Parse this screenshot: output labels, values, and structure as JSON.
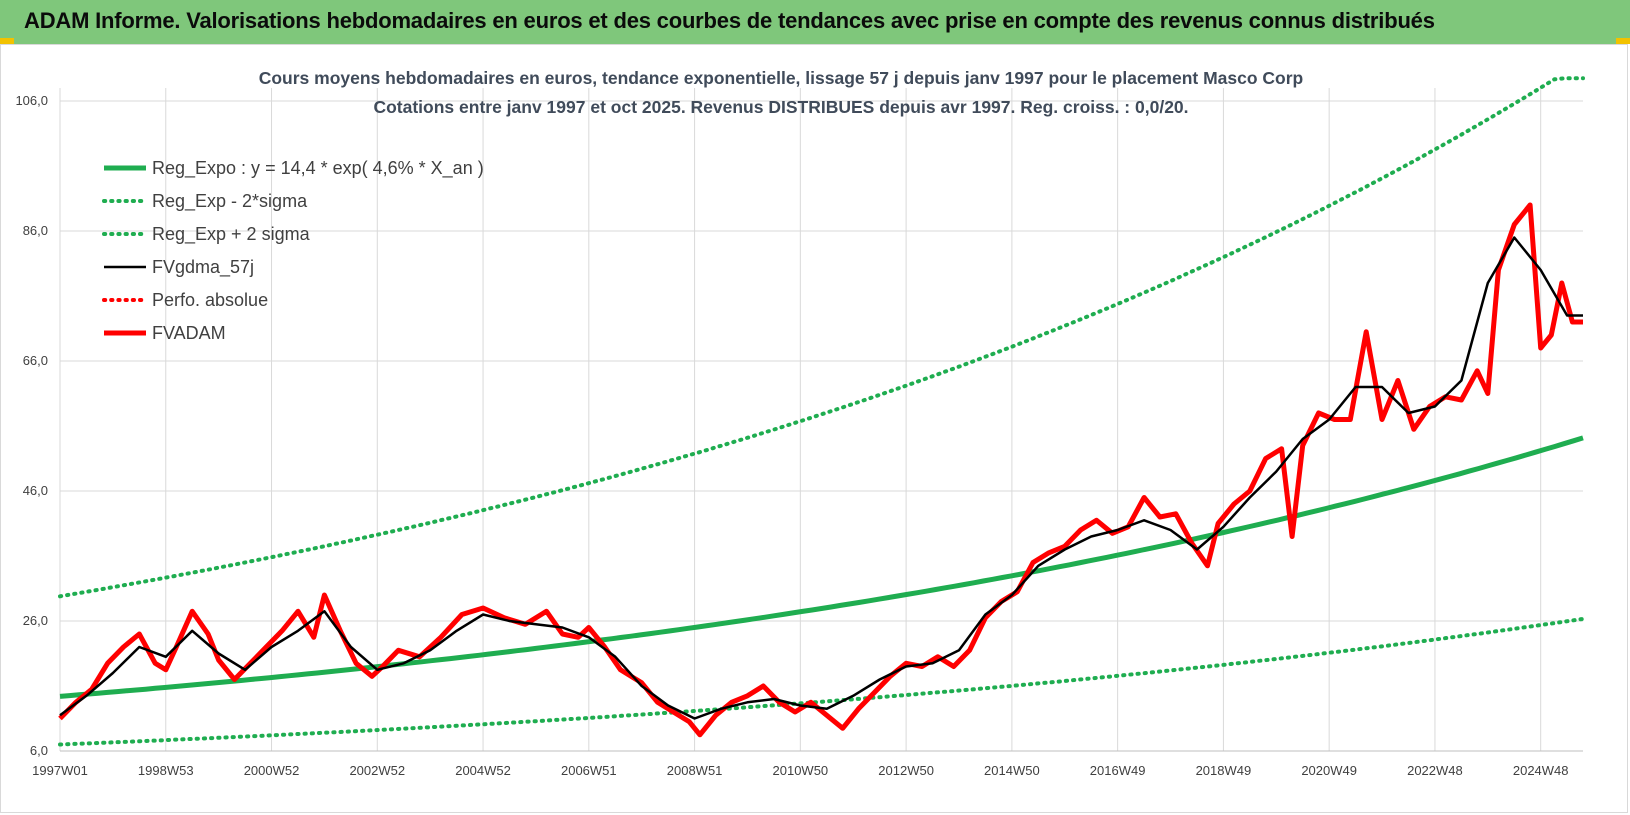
{
  "banner": {
    "title": "ADAM Informe. Valorisations hebdomadaires en euros et des courbes de tendances avec prise en compte des revenus connus distribués"
  },
  "colors": {
    "banner_bg": "#7fc77b",
    "reg_green": "#1fad50",
    "dotted_green": "#1fad50",
    "smooth_black": "#000000",
    "price_red": "#ff0000",
    "grid": "#d9d9d9"
  },
  "chart_data": {
    "type": "line",
    "title": "Cours moyens hebdomadaires en euros, tendance exponentielle, lissage 57 j depuis janv 1997 pour le placement Masco Corp",
    "subtitle": "Cotations entre janv 1997 et oct 2025. Revenus DISTRIBUES depuis avr 1997. Reg. croiss. : 0,0/20.",
    "x_tick_labels": [
      "1997W01",
      "1998W53",
      "2000W52",
      "2002W52",
      "2004W52",
      "2006W51",
      "2008W51",
      "2010W50",
      "2012W50",
      "2014W50",
      "2016W49",
      "2018W49",
      "2020W49",
      "2022W48",
      "2024W48"
    ],
    "x_tick_years": [
      1997.0,
      1999.0,
      2001.0,
      2003.0,
      2005.0,
      2007.0,
      2009.0,
      2011.0,
      2013.0,
      2015.0,
      2017.0,
      2019.0,
      2021.0,
      2023.0,
      2025.0
    ],
    "xlim": [
      1997.0,
      2025.8
    ],
    "ylim": [
      6,
      108
    ],
    "y_ticks": [
      6,
      26,
      46,
      66,
      86,
      106
    ],
    "y_tick_labels": [
      "6,0",
      "26,0",
      "46,0",
      "66,0",
      "86,0",
      "106,0"
    ],
    "grid": true,
    "legend_position": "top-left",
    "series": [
      {
        "name": "Reg_Expo : y = 14,4 * exp( 4,6% *  X_an )",
        "style": "solid-thick",
        "color": "#1fad50",
        "x": [
          1997.0,
          2025.8
        ],
        "a": 14.4,
        "rate": 0.046,
        "cap": null
      },
      {
        "name": "Reg_Exp - 2*sigma",
        "style": "dotted",
        "color": "#1fad50",
        "x": [
          1997.0,
          2025.8
        ],
        "a": 7.0,
        "rate": 0.046,
        "cap": null
      },
      {
        "name": "Reg_Exp + 2 sigma",
        "style": "dotted",
        "color": "#1fad50",
        "x": [
          1997.0,
          2025.8
        ],
        "a": 29.8,
        "rate": 0.046,
        "cap": 109.5
      },
      {
        "name": "FVgdma_57j",
        "style": "solid",
        "color": "#000000",
        "x": [
          1997.0,
          1997.5,
          1998.0,
          1998.5,
          1999.0,
          1999.5,
          2000.0,
          2000.5,
          2001.0,
          2001.5,
          2002.0,
          2002.5,
          2003.0,
          2003.5,
          2004.0,
          2004.5,
          2005.0,
          2005.5,
          2006.0,
          2006.5,
          2007.0,
          2007.5,
          2008.0,
          2008.5,
          2009.0,
          2009.5,
          2010.0,
          2010.5,
          2011.0,
          2011.5,
          2012.0,
          2012.5,
          2013.0,
          2013.5,
          2014.0,
          2014.5,
          2015.0,
          2015.5,
          2016.0,
          2016.5,
          2017.0,
          2017.5,
          2018.0,
          2018.5,
          2019.0,
          2019.5,
          2020.0,
          2020.5,
          2021.0,
          2021.5,
          2022.0,
          2022.5,
          2023.0,
          2023.5,
          2024.0,
          2024.5,
          2025.0,
          2025.5,
          2025.8
        ],
        "y": [
          11.5,
          14.5,
          18.0,
          22.0,
          20.5,
          24.5,
          21.0,
          18.5,
          22.0,
          24.5,
          27.5,
          22.0,
          18.5,
          19.5,
          21.5,
          24.5,
          27.0,
          26.0,
          25.5,
          25.0,
          23.5,
          20.5,
          16.0,
          13.0,
          11.0,
          12.5,
          13.5,
          14.0,
          13.0,
          12.5,
          14.5,
          17.0,
          19.0,
          19.5,
          21.5,
          27.0,
          30.0,
          34.5,
          37.0,
          39.0,
          40.0,
          41.5,
          40.0,
          37.0,
          40.5,
          45.0,
          49.0,
          54.0,
          57.0,
          62.0,
          62.0,
          58.0,
          59.0,
          63.0,
          78.0,
          85.0,
          80.0,
          73.0,
          73.0
        ]
      },
      {
        "name": "Perfo. absolue",
        "style": "dotted",
        "color": "#ff0000",
        "x": [],
        "y": []
      },
      {
        "name": "FVADAM",
        "style": "solid-thick",
        "color": "#ff0000",
        "x": [
          1997.0,
          1997.3,
          1997.6,
          1997.9,
          1998.2,
          1998.5,
          1998.8,
          1999.0,
          1999.2,
          1999.5,
          1999.8,
          2000.0,
          2000.3,
          2000.6,
          2000.9,
          2001.2,
          2001.5,
          2001.8,
          2002.0,
          2002.3,
          2002.6,
          2002.9,
          2003.1,
          2003.4,
          2003.8,
          2004.2,
          2004.6,
          2005.0,
          2005.4,
          2005.8,
          2006.2,
          2006.5,
          2006.8,
          2007.0,
          2007.3,
          2007.6,
          2008.0,
          2008.3,
          2008.6,
          2008.9,
          2009.1,
          2009.4,
          2009.7,
          2010.0,
          2010.3,
          2010.6,
          2010.9,
          2011.2,
          2011.5,
          2011.8,
          2012.1,
          2012.4,
          2012.7,
          2013.0,
          2013.3,
          2013.6,
          2013.9,
          2014.2,
          2014.5,
          2014.8,
          2015.1,
          2015.4,
          2015.7,
          2016.0,
          2016.3,
          2016.6,
          2016.9,
          2017.2,
          2017.5,
          2017.8,
          2018.1,
          2018.4,
          2018.7,
          2018.9,
          2019.2,
          2019.5,
          2019.8,
          2020.1,
          2020.3,
          2020.5,
          2020.8,
          2021.1,
          2021.4,
          2021.7,
          2022.0,
          2022.3,
          2022.6,
          2022.9,
          2023.2,
          2023.5,
          2023.8,
          2024.0,
          2024.2,
          2024.5,
          2024.8,
          2025.0,
          2025.2,
          2025.4,
          2025.6,
          2025.8
        ],
        "y": [
          11.0,
          13.5,
          15.5,
          19.5,
          22.0,
          24.0,
          19.5,
          18.5,
          22.0,
          27.5,
          24.0,
          20.0,
          17.0,
          19.5,
          22.0,
          24.5,
          27.5,
          23.5,
          30.0,
          24.5,
          19.5,
          17.5,
          19.0,
          21.5,
          20.5,
          23.5,
          27.0,
          28.0,
          26.5,
          25.5,
          27.5,
          24.0,
          23.5,
          25.0,
          22.0,
          18.5,
          16.5,
          13.5,
          12.0,
          10.5,
          8.5,
          11.5,
          13.5,
          14.5,
          16.0,
          13.5,
          12.0,
          13.5,
          11.5,
          9.5,
          12.5,
          15.0,
          17.5,
          19.5,
          19.0,
          20.5,
          19.0,
          21.5,
          26.5,
          29.0,
          30.5,
          35.0,
          36.5,
          37.5,
          40.0,
          41.5,
          39.5,
          40.5,
          45.0,
          42.0,
          42.5,
          38.0,
          34.5,
          41.0,
          44.0,
          46.0,
          51.0,
          52.5,
          39.0,
          53.0,
          58.0,
          57.0,
          57.0,
          70.5,
          57.0,
          63.0,
          55.5,
          59.0,
          60.5,
          60.0,
          64.5,
          61.0,
          80.0,
          87.0,
          90.0,
          68.0,
          70.0,
          78.0,
          72.0,
          72.0
        ]
      }
    ]
  }
}
